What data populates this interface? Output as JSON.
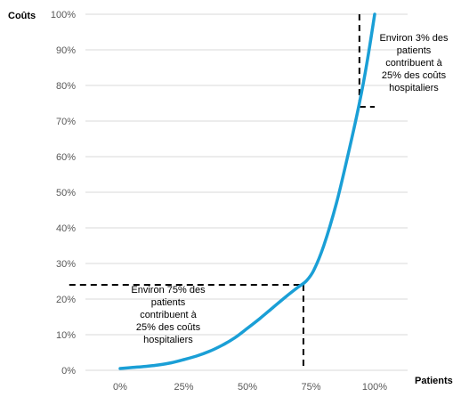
{
  "chart_data": {
    "type": "line",
    "title": "",
    "xlabel": "Patients",
    "ylabel": "Coûts",
    "xlim": [
      0,
      100
    ],
    "ylim": [
      0,
      100
    ],
    "x_ticks": [
      "0%",
      "25%",
      "50%",
      "75%",
      "100%"
    ],
    "x_tick_values": [
      0,
      25,
      50,
      75,
      100
    ],
    "y_ticks": [
      "0%",
      "10%",
      "20%",
      "30%",
      "40%",
      "50%",
      "60%",
      "70%",
      "80%",
      "90%",
      "100%"
    ],
    "y_tick_values": [
      0,
      10,
      20,
      30,
      40,
      50,
      60,
      70,
      80,
      90,
      100
    ],
    "grid": "horizontal",
    "legend": "none",
    "series": [
      {
        "color": "#1a9fd6",
        "x": [
          0,
          5,
          10,
          15,
          20,
          25,
          30,
          35,
          40,
          45,
          50,
          55,
          60,
          65,
          70,
          73,
          76,
          80,
          85,
          90,
          94,
          97,
          100
        ],
        "y": [
          0.5,
          0.8,
          1.1,
          1.5,
          2.1,
          3.0,
          4.0,
          5.3,
          7.0,
          9.1,
          11.8,
          14.6,
          17.6,
          20.6,
          23.4,
          25.0,
          28.0,
          35.0,
          47.0,
          62.0,
          75.0,
          86.5,
          100.0
        ]
      }
    ],
    "reference_lines": [
      {
        "from": [
          -20,
          24
        ],
        "to": [
          72,
          24
        ]
      },
      {
        "from": [
          72,
          24
        ],
        "to": [
          72,
          0
        ]
      },
      {
        "from": [
          94,
          100
        ],
        "to": [
          94,
          74
        ]
      },
      {
        "from": [
          94,
          74
        ],
        "to": [
          100,
          74
        ]
      }
    ],
    "annotations": [
      {
        "lines": [
          "Environ 75% des",
          "patients",
          "contribuent à",
          "25% des coûts",
          "hospitaliers"
        ]
      },
      {
        "lines": [
          "Environ 3% des",
          "patients",
          "contribuent à",
          "25% des coûts",
          "hospitaliers"
        ]
      }
    ]
  }
}
